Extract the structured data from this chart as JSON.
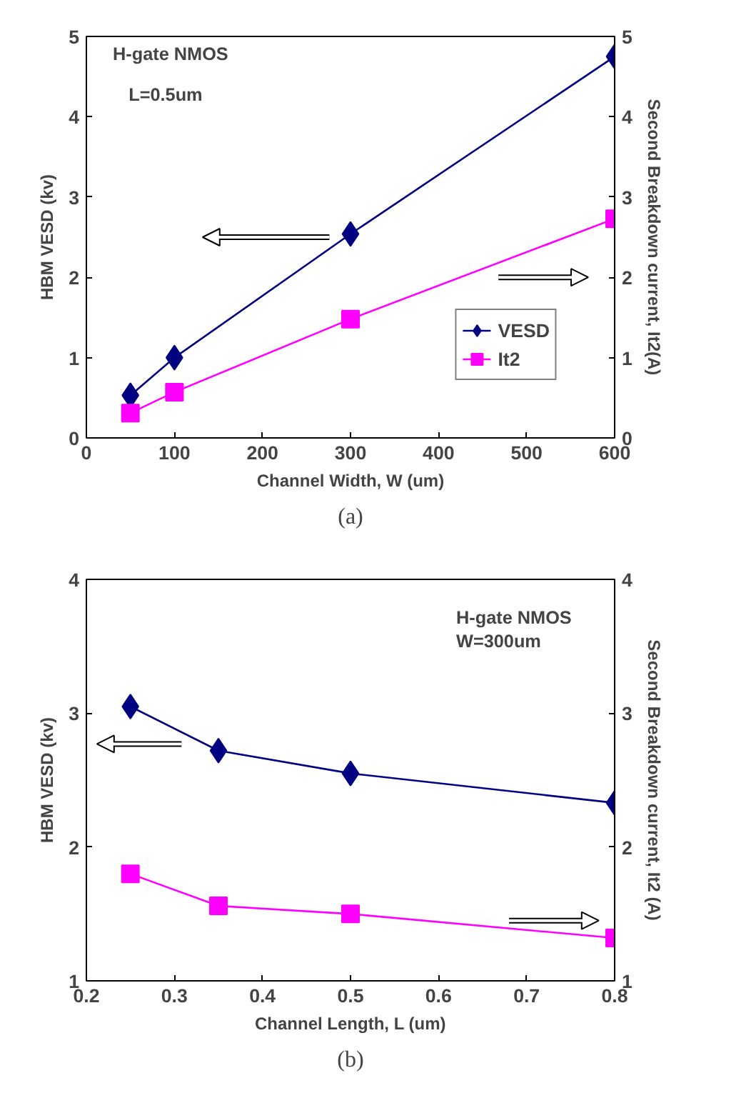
{
  "chart_data": [
    {
      "type": "line",
      "xlabel": "Channel Width, W (um)",
      "ylabel": "HBM VESD (kv)",
      "y2label": "Second Breakdown current, It2(A)",
      "x": [
        50,
        100,
        300,
        600
      ],
      "series": [
        {
          "name": "VESD",
          "color": "#000080",
          "marker": "diamond",
          "values": [
            0.53,
            1.0,
            2.54,
            4.75
          ]
        },
        {
          "name": "It2",
          "color": "#ff00ff",
          "marker": "square",
          "axis": "y2",
          "values": [
            0.31,
            0.57,
            1.48,
            2.73
          ]
        }
      ],
      "xlim": [
        0,
        600
      ],
      "xticks": [
        0,
        100,
        200,
        300,
        400,
        500,
        600
      ],
      "ylim": [
        0,
        5
      ],
      "yticks": [
        0,
        1,
        2,
        3,
        4,
        5
      ],
      "y2lim": [
        0,
        5
      ],
      "y2ticks": [
        0,
        1,
        2,
        3,
        4,
        5
      ],
      "legend": "bottom right",
      "grid": false,
      "line_style": "solid",
      "annotations": [
        "H-gate NMOS",
        "L=0.5um",
        "(a)"
      ]
    },
    {
      "type": "line",
      "xlabel": "Channel Length, L (um)",
      "ylabel": "HBM VESD (kv)",
      "y2label": "Second Breakdown current, It2 (A)",
      "x": [
        0.25,
        0.35,
        0.5,
        0.8
      ],
      "series": [
        {
          "color": "#000080",
          "marker": "diamond",
          "values": [
            3.05,
            2.72,
            2.55,
            2.33
          ]
        },
        {
          "color": "#ff00ff",
          "marker": "square",
          "axis": "y2",
          "values": [
            1.8,
            1.56,
            1.5,
            1.32
          ]
        }
      ],
      "xlim": [
        0.2,
        0.8
      ],
      "xticks": [
        0.2,
        0.3,
        0.4,
        0.5,
        0.6,
        0.7,
        0.8
      ],
      "ylim": [
        1,
        4
      ],
      "yticks": [
        1,
        2,
        3,
        4
      ],
      "y2lim": [
        1,
        4
      ],
      "y2ticks": [
        1,
        2,
        3,
        4
      ],
      "legend": false,
      "grid": false,
      "line_style": "solid",
      "annotations": [
        "H-gate NMOS\nW=300um",
        "(b)"
      ]
    }
  ]
}
